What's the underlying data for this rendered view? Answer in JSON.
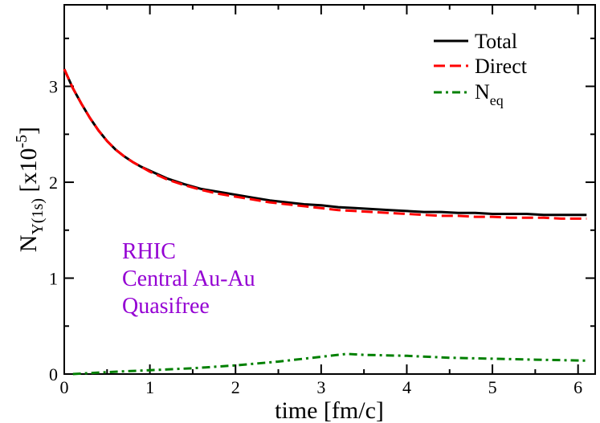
{
  "chart_data": {
    "type": "line",
    "xlabel": "time [fm/c]",
    "ylabel": {
      "main": "N",
      "sub": "Υ(1s)",
      "unit_prefix": " [x10",
      "unit_exp": "-5",
      "unit_suffix": "]"
    },
    "xlim": [
      0,
      6.2
    ],
    "ylim": [
      0,
      3.85
    ],
    "x_ticks": [
      0,
      1,
      2,
      3,
      4,
      5,
      6
    ],
    "y_ticks": [
      0,
      1,
      2,
      3
    ],
    "x_minor_step": 0.5,
    "y_minor_step": 0.5,
    "grid": false,
    "legend_position": "top-right",
    "series": [
      {
        "name": "Total",
        "color": "#000000",
        "style": "solid",
        "x": [
          0.0,
          0.1,
          0.2,
          0.3,
          0.4,
          0.5,
          0.6,
          0.7,
          0.8,
          0.9,
          1.0,
          1.2,
          1.4,
          1.6,
          1.8,
          2.0,
          2.2,
          2.4,
          2.6,
          2.8,
          3.0,
          3.2,
          3.4,
          3.6,
          3.8,
          4.0,
          4.2,
          4.4,
          4.6,
          4.8,
          5.0,
          5.2,
          5.4,
          5.6,
          5.8,
          6.1
        ],
        "y": [
          3.18,
          2.98,
          2.82,
          2.67,
          2.54,
          2.43,
          2.34,
          2.27,
          2.21,
          2.16,
          2.12,
          2.04,
          1.98,
          1.93,
          1.9,
          1.87,
          1.84,
          1.81,
          1.79,
          1.77,
          1.76,
          1.74,
          1.73,
          1.72,
          1.71,
          1.7,
          1.69,
          1.69,
          1.68,
          1.68,
          1.67,
          1.67,
          1.67,
          1.66,
          1.66,
          1.66
        ]
      },
      {
        "name": "Direct",
        "color": "#ff0000",
        "style": "dashed",
        "x": [
          0.0,
          0.1,
          0.2,
          0.3,
          0.4,
          0.5,
          0.6,
          0.7,
          0.8,
          0.9,
          1.0,
          1.2,
          1.4,
          1.6,
          1.8,
          2.0,
          2.2,
          2.4,
          2.6,
          2.8,
          3.0,
          3.2,
          3.4,
          3.6,
          3.8,
          4.0,
          4.2,
          4.4,
          4.6,
          4.8,
          5.0,
          5.2,
          5.4,
          5.6,
          5.8,
          6.1
        ],
        "y": [
          3.18,
          2.98,
          2.82,
          2.67,
          2.54,
          2.43,
          2.34,
          2.27,
          2.21,
          2.16,
          2.11,
          2.03,
          1.97,
          1.92,
          1.88,
          1.85,
          1.82,
          1.79,
          1.77,
          1.75,
          1.73,
          1.71,
          1.7,
          1.69,
          1.68,
          1.67,
          1.66,
          1.65,
          1.65,
          1.64,
          1.64,
          1.63,
          1.63,
          1.63,
          1.62,
          1.62
        ]
      },
      {
        "name": "N_eq",
        "label_main": "N",
        "label_sub": "eq",
        "color": "#008000",
        "style": "dashdot",
        "x": [
          0.1,
          0.5,
          1.0,
          1.5,
          2.0,
          2.5,
          3.0,
          3.3,
          3.5,
          4.0,
          4.5,
          5.0,
          5.5,
          6.1
        ],
        "y": [
          0.0,
          0.02,
          0.04,
          0.06,
          0.09,
          0.13,
          0.18,
          0.21,
          0.2,
          0.19,
          0.17,
          0.16,
          0.15,
          0.14
        ]
      }
    ],
    "annotation": {
      "lines": [
        "RHIC",
        "Central Au-Au",
        "Quasifree"
      ],
      "color": "#9400d3"
    }
  }
}
